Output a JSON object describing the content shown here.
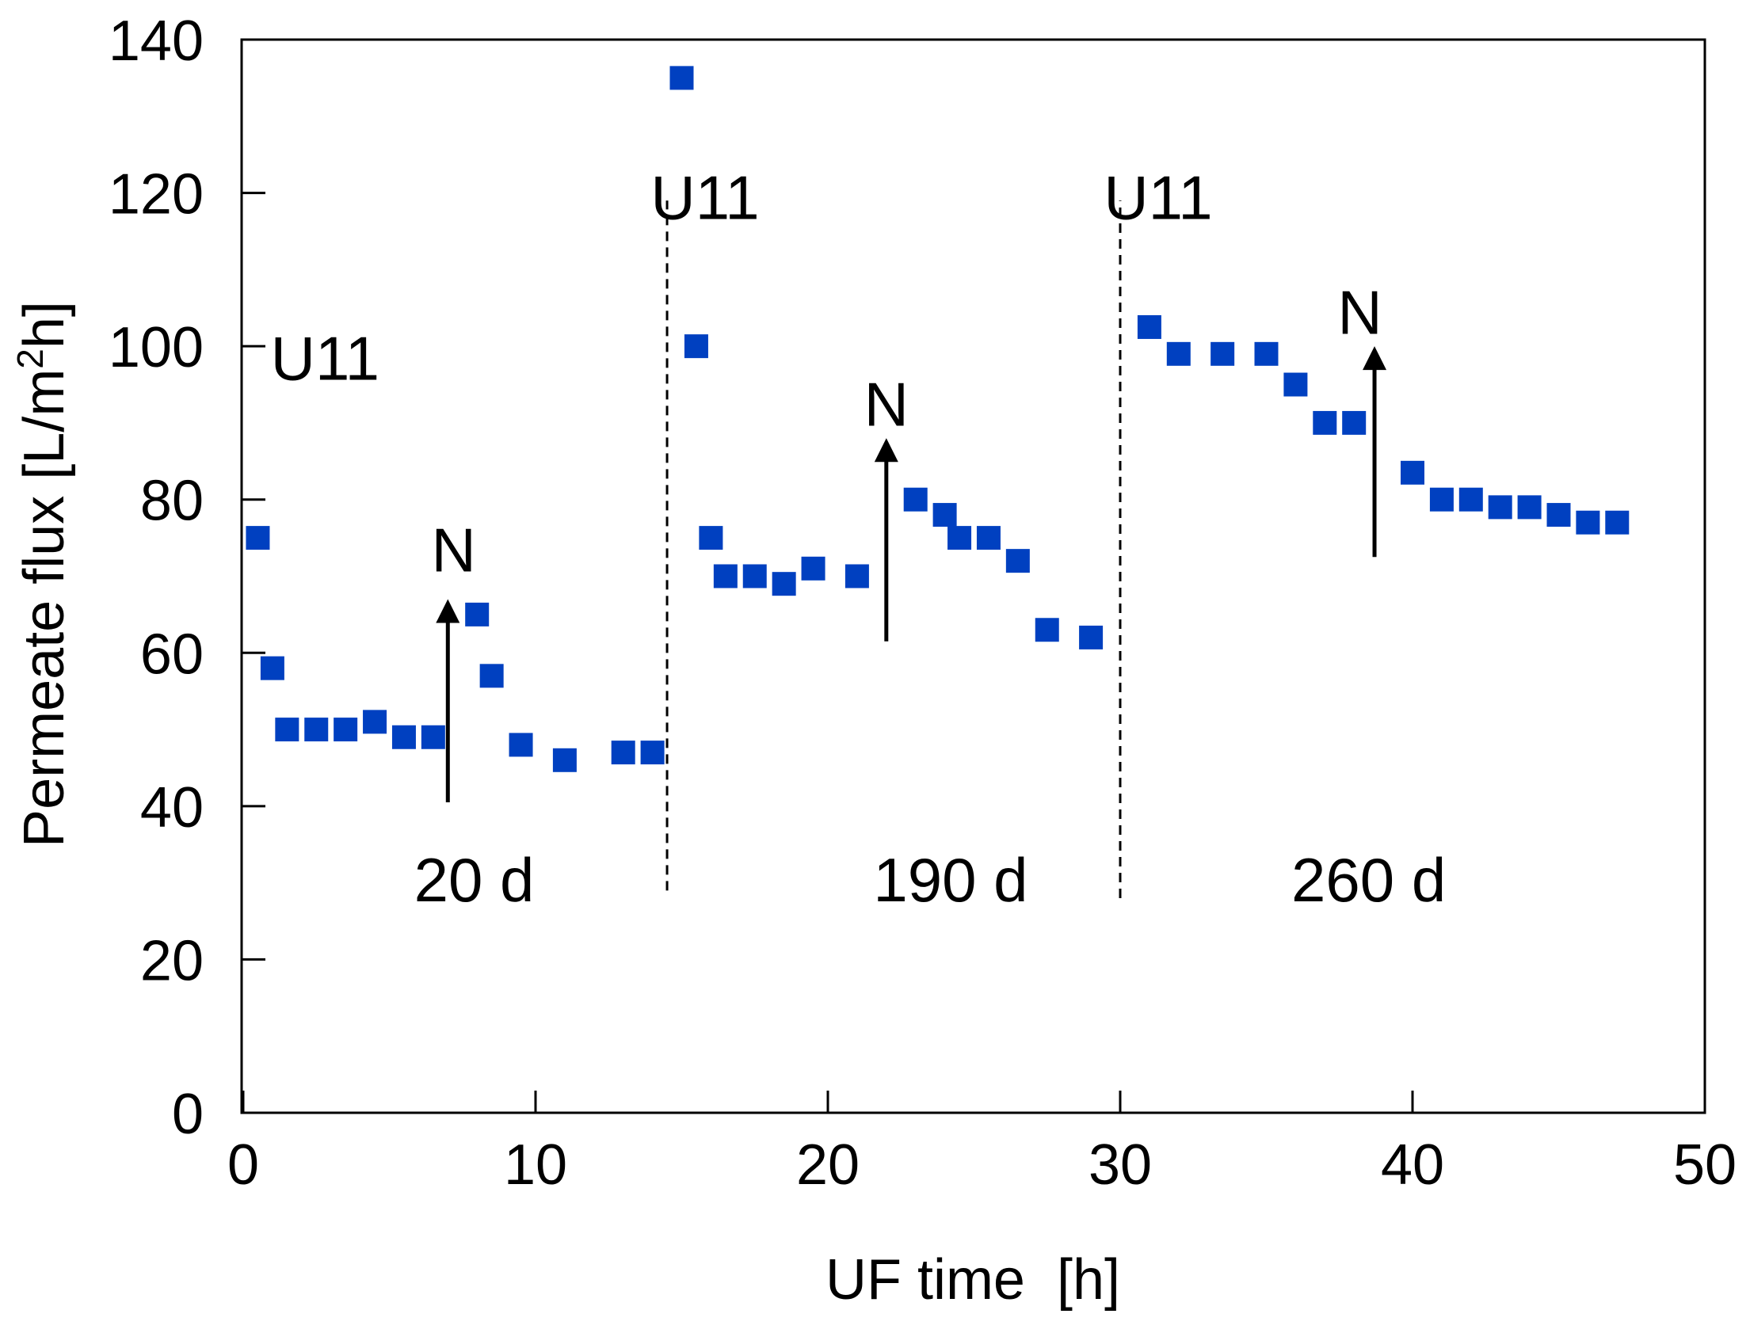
{
  "chart_data": {
    "type": "scatter",
    "title": "",
    "xlabel": "UF time  [h]",
    "ylabel": "Permeate flux [L/m²h]",
    "ylabel_main": "Permeate flux [L/m",
    "ylabel_sup": "2",
    "ylabel_end": "h]",
    "xlim": [
      0,
      50
    ],
    "ylim": [
      0,
      140
    ],
    "xticks": [
      "0",
      "10",
      "20",
      "30",
      "40",
      "50"
    ],
    "yticks": [
      "0",
      "20",
      "40",
      "60",
      "80",
      "100",
      "120",
      "140"
    ],
    "xtick_values": [
      0,
      10,
      20,
      30,
      40,
      50
    ],
    "ytick_values": [
      0,
      20,
      40,
      60,
      80,
      100,
      120,
      140
    ],
    "grid": false,
    "marker_color": "#0040C0",
    "series": [
      {
        "points": [
          [
            0.5,
            75
          ],
          [
            1.0,
            58
          ],
          [
            1.5,
            50
          ],
          [
            2.5,
            50
          ],
          [
            3.5,
            50
          ],
          [
            4.5,
            51
          ],
          [
            5.5,
            49
          ],
          [
            6.5,
            49
          ],
          [
            8.0,
            65
          ],
          [
            8.5,
            57
          ],
          [
            9.5,
            48
          ],
          [
            11.0,
            46
          ],
          [
            13.0,
            47
          ],
          [
            14.0,
            47
          ],
          [
            15.0,
            135
          ],
          [
            15.5,
            100
          ],
          [
            16.0,
            75
          ],
          [
            16.5,
            70
          ],
          [
            17.5,
            70
          ],
          [
            18.5,
            69
          ],
          [
            19.5,
            71
          ],
          [
            21.0,
            70
          ],
          [
            23.0,
            80
          ],
          [
            24.0,
            78
          ],
          [
            24.5,
            75
          ],
          [
            25.5,
            75
          ],
          [
            26.5,
            72
          ],
          [
            27.5,
            63
          ],
          [
            29.0,
            62
          ],
          [
            31.0,
            102.5
          ],
          [
            32.0,
            99
          ],
          [
            33.5,
            99
          ],
          [
            35.0,
            99
          ],
          [
            36.0,
            95
          ],
          [
            37.0,
            90
          ],
          [
            38.0,
            90
          ],
          [
            40.0,
            83.5
          ],
          [
            41.0,
            80
          ],
          [
            42.0,
            80
          ],
          [
            43.0,
            79
          ],
          [
            44.0,
            79
          ],
          [
            45.0,
            78
          ],
          [
            46.0,
            77
          ],
          [
            47.0,
            77
          ]
        ]
      }
    ],
    "dividers": [
      {
        "x": 14.5,
        "y_from": 29,
        "y_to": 119
      },
      {
        "x": 30.0,
        "y_from": 28,
        "y_to": 119
      }
    ],
    "arrows": [
      {
        "x": 7.0,
        "y_from": 40.5,
        "y_to": 67
      },
      {
        "x": 22.0,
        "y_from": 61.5,
        "y_to": 88
      },
      {
        "x": 38.7,
        "y_from": 72.5,
        "y_to": 100
      }
    ],
    "annotations": [
      {
        "id": "u11-1",
        "text": "U11",
        "x": 2.8,
        "y": 98.5
      },
      {
        "id": "n-1",
        "text": "N",
        "x": 7.2,
        "y": 73.5
      },
      {
        "id": "days-1",
        "text": "20 d",
        "x": 7.9,
        "y": 30.5
      },
      {
        "id": "u11-2",
        "text": "U11",
        "x": 15.8,
        "y": 119.5
      },
      {
        "id": "n-2",
        "text": "N",
        "x": 22.0,
        "y": 92.5
      },
      {
        "id": "days-2",
        "text": "190 d",
        "x": 24.2,
        "y": 30.5
      },
      {
        "id": "u11-3",
        "text": "U11",
        "x": 31.3,
        "y": 119.5
      },
      {
        "id": "n-3",
        "text": "N",
        "x": 38.2,
        "y": 104.5
      },
      {
        "id": "days-3",
        "text": "260 d",
        "x": 38.5,
        "y": 30.5
      }
    ]
  }
}
